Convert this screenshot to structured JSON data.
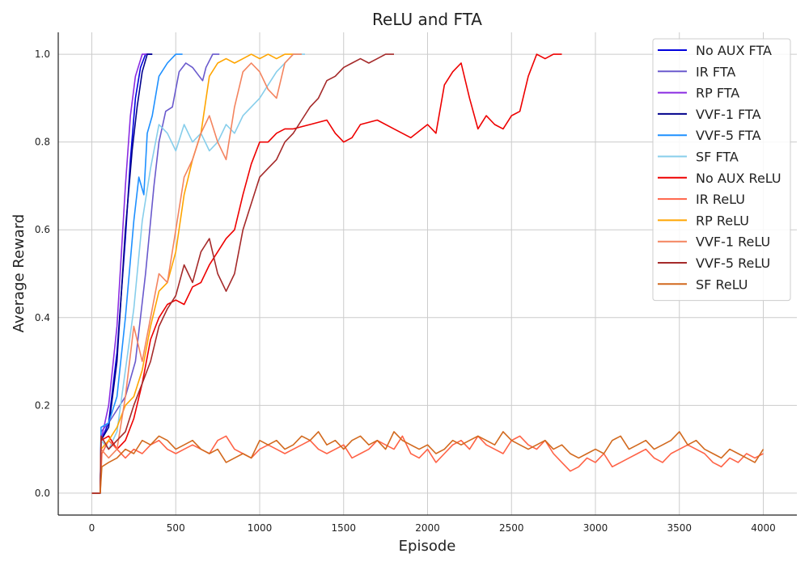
{
  "chart_data": {
    "type": "line",
    "title": "ReLU and FTA",
    "xlabel": "Episode",
    "ylabel": "Average Reward",
    "xlim": [
      -200,
      4200
    ],
    "ylim": [
      -0.05,
      1.05
    ],
    "xticks": [
      0,
      500,
      1000,
      1500,
      2000,
      2500,
      3000,
      3500,
      4000
    ],
    "yticks": [
      0.0,
      0.2,
      0.4,
      0.6,
      0.8,
      1.0
    ],
    "xtick_labels": [
      "0",
      "500",
      "1000",
      "1500",
      "2000",
      "2500",
      "3000",
      "3500",
      "4000"
    ],
    "ytick_labels": [
      "0.0",
      "0.2",
      "0.4",
      "0.6",
      "0.8",
      "1.0"
    ],
    "grid": true,
    "legend_position": "top-right",
    "series": [
      {
        "name": "No AUX FTA",
        "color": "#0000dd",
        "x": [
          0,
          50,
          55,
          100,
          150,
          200,
          230,
          260,
          290,
          320,
          360
        ],
        "y": [
          0,
          0,
          0.12,
          0.16,
          0.32,
          0.58,
          0.76,
          0.9,
          0.97,
          1.0,
          1.0
        ]
      },
      {
        "name": "IR FTA",
        "color": "#6a5acd",
        "x": [
          0,
          50,
          55,
          100,
          200,
          260,
          320,
          370,
          400,
          440,
          480,
          520,
          560,
          600,
          640,
          660,
          680,
          720,
          760
        ],
        "y": [
          0,
          0,
          0.14,
          0.16,
          0.22,
          0.3,
          0.5,
          0.7,
          0.8,
          0.87,
          0.88,
          0.96,
          0.98,
          0.97,
          0.95,
          0.94,
          0.97,
          1.0,
          1.0
        ]
      },
      {
        "name": "RP FTA",
        "color": "#8a2be2",
        "x": [
          0,
          50,
          55,
          100,
          150,
          200,
          230,
          260,
          300,
          340
        ],
        "y": [
          0,
          0,
          0.12,
          0.2,
          0.38,
          0.7,
          0.86,
          0.95,
          1.0,
          1.0
        ]
      },
      {
        "name": "VVF-1 FTA",
        "color": "#00008b",
        "x": [
          0,
          50,
          55,
          100,
          150,
          200,
          240,
          270,
          300,
          330,
          360
        ],
        "y": [
          0,
          0,
          0.12,
          0.15,
          0.3,
          0.6,
          0.78,
          0.88,
          0.96,
          1.0,
          1.0
        ]
      },
      {
        "name": "VVF-5 FTA",
        "color": "#1e90ff",
        "x": [
          0,
          50,
          55,
          100,
          150,
          200,
          250,
          280,
          310,
          330,
          360,
          400,
          450,
          500,
          540
        ],
        "y": [
          0,
          0,
          0.15,
          0.16,
          0.22,
          0.4,
          0.62,
          0.72,
          0.68,
          0.82,
          0.86,
          0.95,
          0.98,
          1.0,
          1.0
        ]
      },
      {
        "name": "SF FTA",
        "color": "#87ceeb",
        "x": [
          0,
          50,
          55,
          100,
          150,
          200,
          250,
          300,
          350,
          400,
          450,
          500,
          550,
          600,
          650,
          700,
          750,
          800,
          850,
          900,
          950,
          1000,
          1050,
          1100,
          1150,
          1200,
          1270
        ],
        "y": [
          0,
          0,
          0.12,
          0.1,
          0.14,
          0.28,
          0.42,
          0.62,
          0.74,
          0.84,
          0.82,
          0.78,
          0.84,
          0.8,
          0.82,
          0.78,
          0.8,
          0.84,
          0.82,
          0.86,
          0.88,
          0.9,
          0.93,
          0.96,
          0.98,
          1.0,
          1.0
        ]
      },
      {
        "name": "No AUX ReLU",
        "color": "#ee0000",
        "x": [
          0,
          50,
          55,
          100,
          150,
          200,
          250,
          300,
          350,
          400,
          450,
          500,
          550,
          600,
          650,
          700,
          750,
          800,
          850,
          900,
          950,
          1000,
          1050,
          1100,
          1150,
          1200,
          1300,
          1400,
          1450,
          1500,
          1550,
          1600,
          1700,
          1800,
          1900,
          2000,
          2050,
          2100,
          2150,
          2200,
          2250,
          2300,
          2350,
          2400,
          2450,
          2500,
          2550,
          2600,
          2650,
          2700,
          2750,
          2800
        ],
        "y": [
          0,
          0,
          0.12,
          0.13,
          0.1,
          0.12,
          0.17,
          0.25,
          0.35,
          0.4,
          0.43,
          0.44,
          0.43,
          0.47,
          0.48,
          0.52,
          0.55,
          0.58,
          0.6,
          0.68,
          0.75,
          0.8,
          0.8,
          0.82,
          0.83,
          0.83,
          0.84,
          0.85,
          0.82,
          0.8,
          0.81,
          0.84,
          0.85,
          0.83,
          0.81,
          0.84,
          0.82,
          0.93,
          0.96,
          0.98,
          0.9,
          0.83,
          0.86,
          0.84,
          0.83,
          0.86,
          0.87,
          0.95,
          1.0,
          0.99,
          1.0,
          1.0
        ]
      },
      {
        "name": "IR ReLU",
        "color": "#ff6347",
        "x": [
          50,
          60,
          100,
          150,
          200,
          250,
          300,
          350,
          400,
          450,
          500,
          550,
          600,
          650,
          700,
          750,
          800,
          850,
          900,
          950,
          1000,
          1050,
          1100,
          1150,
          1200,
          1250,
          1300,
          1350,
          1400,
          1450,
          1500,
          1550,
          1600,
          1650,
          1700,
          1750,
          1800,
          1850,
          1900,
          1950,
          2000,
          2050,
          2100,
          2150,
          2200,
          2250,
          2300,
          2350,
          2400,
          2450,
          2500,
          2550,
          2600,
          2650,
          2700,
          2750,
          2800,
          2850,
          2900,
          2950,
          3000,
          3050,
          3100,
          3150,
          3200,
          3250,
          3300,
          3350,
          3400,
          3450,
          3500,
          3550,
          3600,
          3650,
          3700,
          3750,
          3800,
          3850,
          3900,
          3950,
          4000
        ],
        "y": [
          0,
          0.09,
          0.12,
          0.1,
          0.08,
          0.1,
          0.09,
          0.11,
          0.12,
          0.1,
          0.09,
          0.1,
          0.11,
          0.1,
          0.09,
          0.12,
          0.13,
          0.1,
          0.09,
          0.08,
          0.1,
          0.11,
          0.1,
          0.09,
          0.1,
          0.11,
          0.12,
          0.1,
          0.09,
          0.1,
          0.11,
          0.08,
          0.09,
          0.1,
          0.12,
          0.11,
          0.1,
          0.13,
          0.09,
          0.08,
          0.1,
          0.07,
          0.09,
          0.11,
          0.12,
          0.1,
          0.13,
          0.11,
          0.1,
          0.09,
          0.12,
          0.13,
          0.11,
          0.1,
          0.12,
          0.09,
          0.07,
          0.05,
          0.06,
          0.08,
          0.07,
          0.09,
          0.06,
          0.07,
          0.08,
          0.09,
          0.1,
          0.08,
          0.07,
          0.09,
          0.1,
          0.11,
          0.1,
          0.09,
          0.07,
          0.06,
          0.08,
          0.07,
          0.09,
          0.08,
          0.09
        ]
      },
      {
        "name": "RP ReLU",
        "color": "#ffa500",
        "x": [
          0,
          50,
          55,
          100,
          150,
          200,
          250,
          300,
          350,
          400,
          450,
          500,
          550,
          600,
          650,
          700,
          750,
          800,
          850,
          900,
          950,
          1000,
          1050,
          1100,
          1150,
          1200
        ],
        "y": [
          0,
          0,
          0.1,
          0.12,
          0.15,
          0.2,
          0.22,
          0.28,
          0.38,
          0.46,
          0.48,
          0.55,
          0.68,
          0.76,
          0.82,
          0.95,
          0.98,
          0.99,
          0.98,
          0.99,
          1.0,
          0.99,
          1.0,
          0.99,
          1.0,
          1.0
        ]
      },
      {
        "name": "VVF-1 ReLU",
        "color": "#f4845f",
        "x": [
          0,
          50,
          55,
          100,
          150,
          200,
          250,
          300,
          350,
          400,
          450,
          500,
          550,
          600,
          650,
          700,
          750,
          800,
          850,
          900,
          950,
          1000,
          1050,
          1100,
          1150,
          1200,
          1250
        ],
        "y": [
          0,
          0,
          0.1,
          0.08,
          0.1,
          0.22,
          0.38,
          0.3,
          0.4,
          0.5,
          0.48,
          0.6,
          0.72,
          0.76,
          0.82,
          0.86,
          0.8,
          0.76,
          0.88,
          0.96,
          0.98,
          0.96,
          0.92,
          0.9,
          0.98,
          1.0,
          1.0
        ]
      },
      {
        "name": "VVF-5 ReLU",
        "color": "#a52a2a",
        "x": [
          0,
          50,
          55,
          100,
          150,
          200,
          250,
          300,
          350,
          400,
          450,
          500,
          550,
          600,
          650,
          700,
          750,
          800,
          850,
          900,
          950,
          1000,
          1050,
          1100,
          1150,
          1200,
          1250,
          1300,
          1350,
          1400,
          1450,
          1500,
          1550,
          1600,
          1650,
          1700,
          1750,
          1800
        ],
        "y": [
          0,
          0,
          0.13,
          0.1,
          0.12,
          0.14,
          0.2,
          0.25,
          0.3,
          0.38,
          0.42,
          0.45,
          0.52,
          0.48,
          0.55,
          0.58,
          0.5,
          0.46,
          0.5,
          0.6,
          0.66,
          0.72,
          0.74,
          0.76,
          0.8,
          0.82,
          0.85,
          0.88,
          0.9,
          0.94,
          0.95,
          0.97,
          0.98,
          0.99,
          0.98,
          0.99,
          1.0,
          1.0
        ]
      },
      {
        "name": "SF ReLU",
        "color": "#d2691e",
        "x": [
          50,
          60,
          100,
          150,
          200,
          250,
          300,
          350,
          400,
          450,
          500,
          550,
          600,
          650,
          700,
          750,
          800,
          850,
          900,
          950,
          1000,
          1050,
          1100,
          1150,
          1200,
          1250,
          1300,
          1350,
          1400,
          1450,
          1500,
          1550,
          1600,
          1650,
          1700,
          1750,
          1800,
          1850,
          1900,
          1950,
          2000,
          2050,
          2100,
          2150,
          2200,
          2250,
          2300,
          2350,
          2400,
          2450,
          2500,
          2550,
          2600,
          2650,
          2700,
          2750,
          2800,
          2850,
          2900,
          2950,
          3000,
          3050,
          3100,
          3150,
          3200,
          3250,
          3300,
          3350,
          3400,
          3450,
          3500,
          3550,
          3600,
          3650,
          3700,
          3750,
          3800,
          3850,
          3900,
          3950,
          4000
        ],
        "y": [
          0,
          0.06,
          0.07,
          0.08,
          0.1,
          0.09,
          0.12,
          0.11,
          0.13,
          0.12,
          0.1,
          0.11,
          0.12,
          0.1,
          0.09,
          0.1,
          0.07,
          0.08,
          0.09,
          0.08,
          0.12,
          0.11,
          0.12,
          0.1,
          0.11,
          0.13,
          0.12,
          0.14,
          0.11,
          0.12,
          0.1,
          0.12,
          0.13,
          0.11,
          0.12,
          0.1,
          0.14,
          0.12,
          0.11,
          0.1,
          0.11,
          0.09,
          0.1,
          0.12,
          0.11,
          0.12,
          0.13,
          0.12,
          0.11,
          0.14,
          0.12,
          0.11,
          0.1,
          0.11,
          0.12,
          0.1,
          0.11,
          0.09,
          0.08,
          0.09,
          0.1,
          0.09,
          0.12,
          0.13,
          0.1,
          0.11,
          0.12,
          0.1,
          0.11,
          0.12,
          0.14,
          0.11,
          0.12,
          0.1,
          0.09,
          0.08,
          0.1,
          0.09,
          0.08,
          0.07,
          0.1
        ]
      }
    ]
  }
}
